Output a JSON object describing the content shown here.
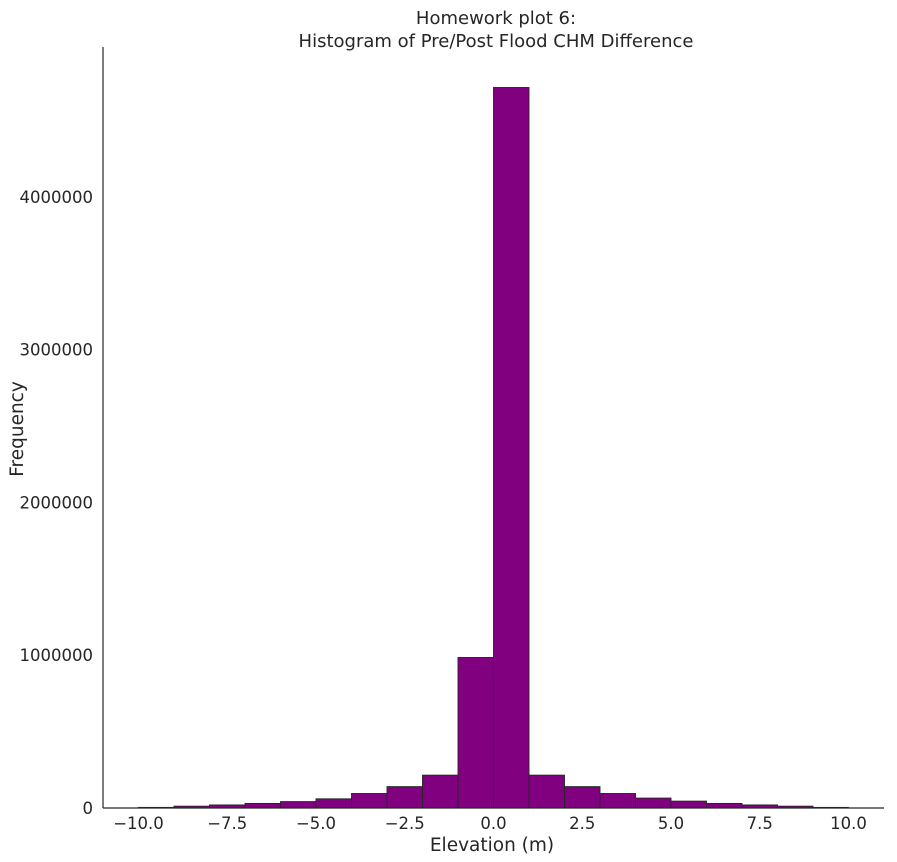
{
  "chart_data": {
    "type": "bar",
    "title": [
      "Homework plot 6:",
      "Histogram of Pre/Post Flood CHM Difference"
    ],
    "xlabel": "Elevation (m)",
    "ylabel": "Frequency",
    "xlim": [
      -11.0,
      11.0
    ],
    "ylim": [
      0,
      4980000
    ],
    "xticks": [
      "−10.0",
      "−7.5",
      "−5.0",
      "−2.5",
      "0.0",
      "2.5",
      "5.0",
      "7.5",
      "10.0"
    ],
    "xtick_values": [
      -10,
      -7.5,
      -5,
      -2.5,
      0,
      2.5,
      5,
      7.5,
      10
    ],
    "yticks": [
      "0",
      "1000000",
      "2000000",
      "3000000",
      "4000000"
    ],
    "ytick_values": [
      0,
      1000000,
      2000000,
      3000000,
      4000000
    ],
    "bin_edges": [
      -10,
      -9,
      -8,
      -7,
      -6,
      -5,
      -4,
      -3,
      -2,
      -1,
      0,
      1,
      2,
      3,
      4,
      5,
      6,
      7,
      8,
      9,
      10
    ],
    "values": [
      4000,
      12000,
      20000,
      30000,
      42000,
      60000,
      95000,
      140000,
      215000,
      985000,
      4715000,
      215000,
      140000,
      95000,
      65000,
      45000,
      30000,
      20000,
      12000,
      4000
    ],
    "bar_color": "#800080",
    "edge_color": "#262626",
    "grid": false
  }
}
